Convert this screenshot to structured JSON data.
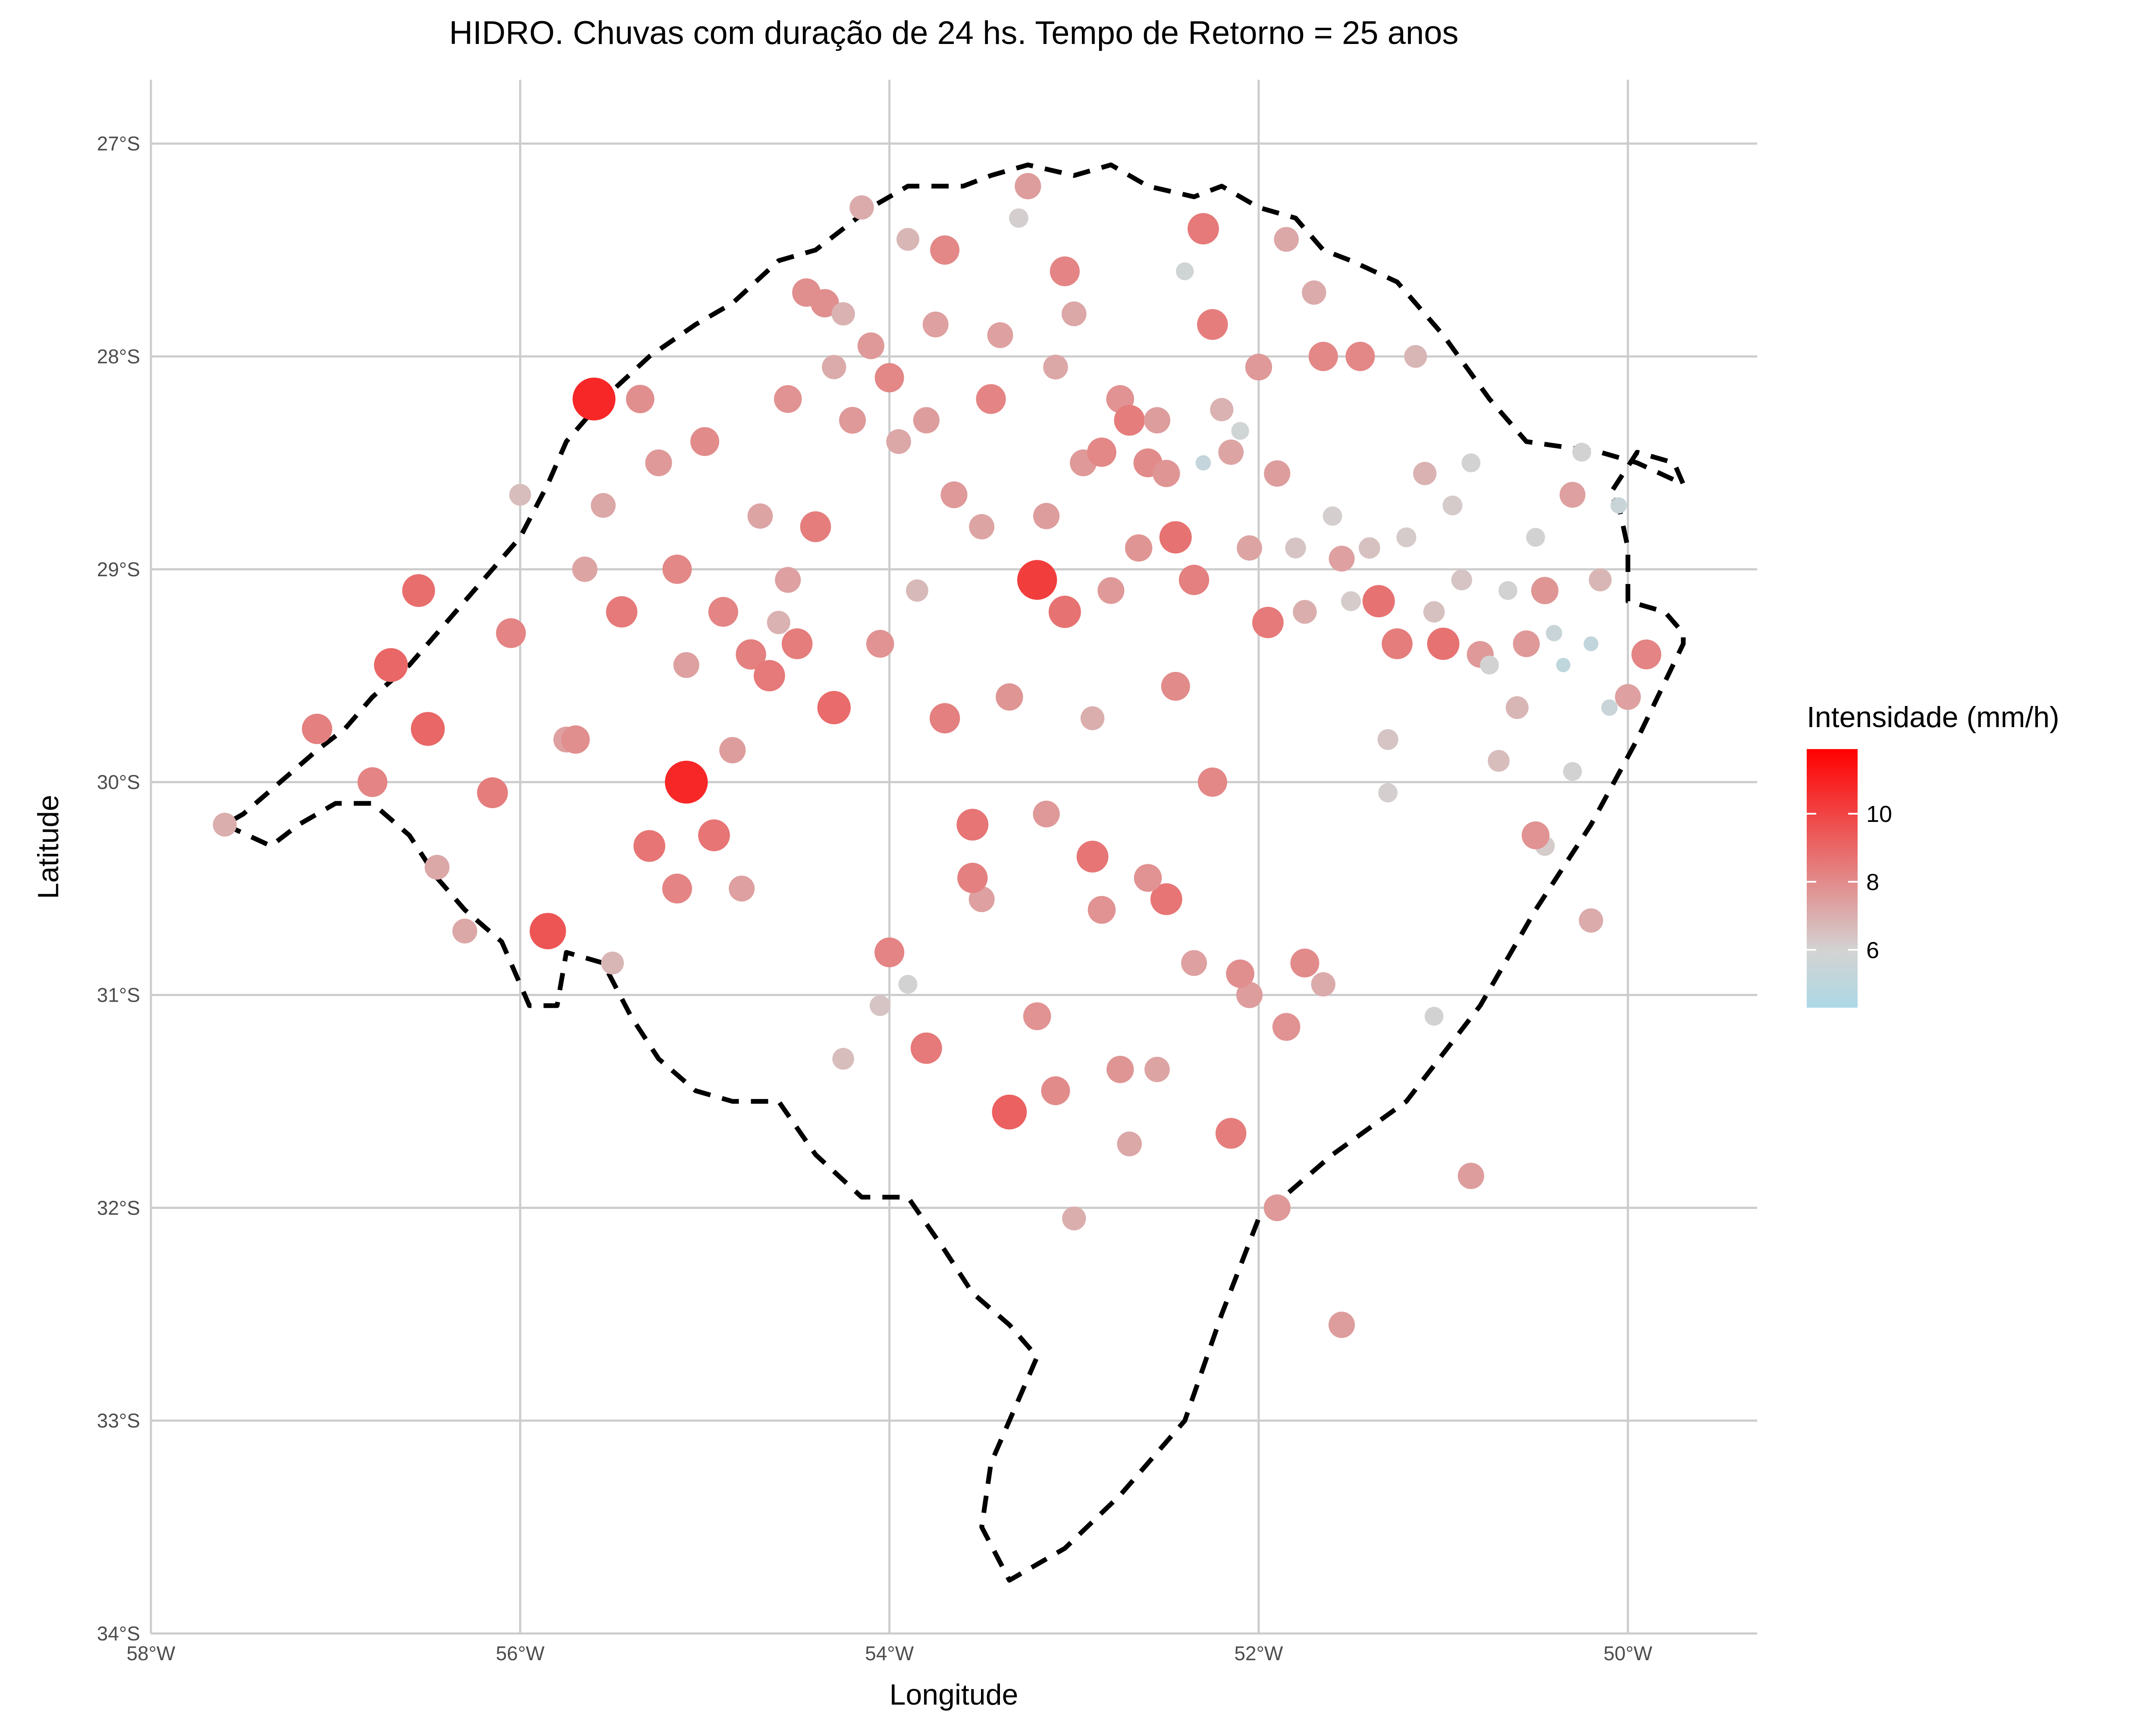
{
  "chart_data": {
    "type": "scatter",
    "title": "HIDRO. Chuvas com duração de 24 hs. Tempo de Retorno = 25 anos",
    "xlabel": "Longitude",
    "ylabel": "Latitude",
    "xlim": [
      -58,
      -49.3
    ],
    "ylim": [
      -34,
      -26.7
    ],
    "x_ticks": [
      -58,
      -56,
      -54,
      -52,
      -50
    ],
    "x_tick_labels": [
      "58°W",
      "56°W",
      "54°W",
      "52°W",
      "50°W"
    ],
    "y_ticks": [
      -27,
      -28,
      -29,
      -30,
      -31,
      -32,
      -33,
      -34
    ],
    "y_tick_labels": [
      "27°S",
      "28°S",
      "29°S",
      "30°S",
      "31°S",
      "32°S",
      "33°S",
      "34°S"
    ],
    "grid": true,
    "legend": {
      "title": "Intensidade (mm/h)",
      "placement": "right",
      "range": [
        4.3,
        11.9
      ],
      "ticks": [
        6,
        8,
        10
      ],
      "tick_labels": [
        "6",
        "8",
        "10"
      ],
      "colors": {
        "low": "#add8e6",
        "mid": "#d3d3d3",
        "high": "#ff0000"
      }
    },
    "border_line": {
      "style": "dashed",
      "color": "#000000",
      "lon": [
        -57.6,
        -57.35,
        -57.2,
        -57.0,
        -56.8,
        -56.6,
        -56.45,
        -56.3,
        -56.1,
        -55.95,
        -55.8,
        -55.75,
        -55.55,
        -55.4,
        -55.25,
        -55.05,
        -54.85,
        -54.6,
        -54.4,
        -54.15,
        -53.9,
        -53.7,
        -53.55,
        -53.35,
        -53.2,
        -53.3,
        -53.45,
        -53.5,
        -53.35,
        -53.05,
        -52.75,
        -52.4,
        -52.2,
        -52.0,
        -51.6,
        -51.2,
        -50.8,
        -50.5,
        -50.2,
        -49.95,
        -49.7,
        -49.7,
        -49.8,
        -50.0,
        -50.0,
        -50.05,
        -50.1,
        -49.95,
        -49.75,
        -49.7,
        -49.95,
        -50.15,
        -50.55,
        -50.75,
        -51.0,
        -51.25,
        -51.5,
        -51.65,
        -51.8,
        -52.0,
        -52.2,
        -52.35,
        -52.6,
        -52.8,
        -53.0,
        -53.25,
        -53.45,
        -53.6,
        -53.9,
        -54.1,
        -54.25,
        -54.4,
        -54.6,
        -54.85,
        -55.05,
        -55.3,
        -55.55,
        -55.75,
        -55.85,
        -56.0,
        -56.2,
        -56.4,
        -56.6,
        -56.8,
        -56.95,
        -57.1,
        -57.3,
        -57.5,
        -57.6
      ],
      "lat": [
        -30.2,
        -30.3,
        -30.2,
        -30.1,
        -30.1,
        -30.25,
        -30.45,
        -30.6,
        -30.75,
        -31.05,
        -31.05,
        -30.8,
        -30.85,
        -31.1,
        -31.3,
        -31.45,
        -31.5,
        -31.5,
        -31.75,
        -31.95,
        -31.95,
        -32.2,
        -32.4,
        -32.55,
        -32.7,
        -32.9,
        -33.2,
        -33.5,
        -33.75,
        -33.6,
        -33.35,
        -33.0,
        -32.5,
        -32.05,
        -31.75,
        -31.5,
        -31.05,
        -30.6,
        -30.2,
        -29.8,
        -29.35,
        -29.3,
        -29.2,
        -29.15,
        -28.9,
        -28.7,
        -28.65,
        -28.45,
        -28.5,
        -28.6,
        -28.5,
        -28.45,
        -28.4,
        -28.2,
        -27.9,
        -27.65,
        -27.55,
        -27.5,
        -27.35,
        -27.3,
        -27.2,
        -27.25,
        -27.2,
        -27.1,
        -27.15,
        -27.1,
        -27.15,
        -27.2,
        -27.2,
        -27.3,
        -27.4,
        -27.5,
        -27.55,
        -27.75,
        -27.85,
        -28.0,
        -28.2,
        -28.4,
        -28.6,
        -28.85,
        -29.05,
        -29.25,
        -29.45,
        -29.6,
        -29.75,
        -29.85,
        -30.0,
        -30.15,
        -30.2
      ]
    },
    "series": [
      {
        "lon": [
          -57.6,
          -57.1,
          -56.8,
          -56.7,
          -56.55,
          -56.5,
          -56.45,
          -56.15,
          -56.05,
          -56.0,
          -55.85,
          -55.75,
          -55.65,
          -55.6,
          -55.55,
          -55.5,
          -55.45,
          -55.35,
          -55.25,
          -55.15,
          -55.1,
          -55.15,
          -55.0,
          -54.95,
          -54.9,
          -54.85,
          -54.8,
          -54.75,
          -54.7,
          -54.65,
          -54.6,
          -54.55,
          -54.55,
          -54.5,
          -54.45,
          -54.4,
          -54.35,
          -54.3,
          -54.3,
          -54.25,
          -54.15,
          -54.2,
          -54.1,
          -54.05,
          -54.0,
          -53.95,
          -53.9,
          -53.85,
          -53.8,
          -53.75,
          -53.7,
          -53.7,
          -53.65,
          -53.55,
          -53.5,
          -53.45,
          -53.4,
          -53.35,
          -53.3,
          -53.25,
          -53.2,
          -53.15,
          -53.15,
          -53.1,
          -53.05,
          -53.05,
          -53.0,
          -52.95,
          -52.9,
          -52.85,
          -52.8,
          -52.75,
          -52.7,
          -52.65,
          -52.6,
          -52.55,
          -52.5,
          -52.45,
          -52.4,
          -52.35,
          -52.3,
          -52.3,
          -52.25,
          -52.2,
          -52.15,
          -52.1,
          -52.05,
          -52.0,
          -51.95,
          -51.9,
          -51.85,
          -51.8,
          -51.75,
          -51.7,
          -51.65,
          -51.6,
          -51.55,
          -51.5,
          -51.45,
          -51.4,
          -51.35,
          -51.3,
          -51.25,
          -51.2,
          -51.15,
          -51.1,
          -51.05,
          -51.0,
          -50.95,
          -50.9,
          -50.85,
          -50.8,
          -50.75,
          -50.7,
          -50.65,
          -50.6,
          -50.55,
          -50.5,
          -50.45,
          -50.4,
          -50.35,
          -50.3,
          -50.25,
          -50.2,
          -50.15,
          -50.1,
          -50.05,
          -50.0,
          -49.9,
          -55.1,
          -53.2,
          -53.35,
          -52.55,
          -52.05,
          -51.75,
          -53.1,
          -52.15,
          -53.5,
          -52.85,
          -54.25,
          -53.8,
          -54.0,
          -52.5,
          -52.9,
          -51.65,
          -50.45,
          -50.2,
          -51.3,
          -52.6,
          -53.0,
          -51.9,
          -50.5,
          -51.55,
          -51.05,
          -52.35,
          -52.1,
          -54.05,
          -55.3,
          -56.3,
          -55.7,
          -52.75,
          -53.55,
          -50.85,
          -52.25,
          -51.85,
          -50.3,
          -52.45,
          -53.9,
          -52.7
        ],
        "lat": [
          -30.2,
          -29.75,
          -30.0,
          -29.45,
          -29.1,
          -29.75,
          -30.4,
          -30.05,
          -29.3,
          -28.65,
          -30.7,
          -29.8,
          -29.0,
          -28.2,
          -28.7,
          -30.85,
          -29.2,
          -28.2,
          -28.5,
          -29.0,
          -29.45,
          -30.5,
          -28.4,
          -30.25,
          -29.2,
          -29.85,
          -30.5,
          -29.4,
          -28.75,
          -29.5,
          -29.25,
          -28.2,
          -29.05,
          -29.35,
          -27.7,
          -28.8,
          -27.75,
          -28.05,
          -29.65,
          -27.8,
          -27.3,
          -28.3,
          -27.95,
          -29.35,
          -28.1,
          -28.4,
          -27.45,
          -29.1,
          -28.3,
          -27.85,
          -27.5,
          -29.7,
          -28.65,
          -30.2,
          -28.8,
          -28.2,
          -27.9,
          -29.6,
          -27.35,
          -27.2,
          -29.05,
          -28.75,
          -30.15,
          -28.05,
          -27.6,
          -29.2,
          -27.8,
          -28.5,
          -29.7,
          -28.45,
          -29.1,
          -28.2,
          -28.3,
          -28.9,
          -28.5,
          -28.3,
          -28.55,
          -28.85,
          -27.6,
          -29.05,
          -28.5,
          -27.4,
          -27.85,
          -28.25,
          -28.45,
          -28.35,
          -28.9,
          -28.05,
          -29.25,
          -28.55,
          -27.45,
          -28.9,
          -29.2,
          -27.7,
          -28.0,
          -28.75,
          -28.95,
          -29.15,
          -28.0,
          -28.9,
          -29.15,
          -29.8,
          -29.35,
          -28.85,
          -28.0,
          -28.55,
          -29.2,
          -29.35,
          -28.7,
          -29.05,
          -28.5,
          -29.4,
          -29.45,
          -29.9,
          -29.1,
          -29.65,
          -29.35,
          -28.85,
          -29.1,
          -29.3,
          -29.45,
          -28.65,
          -28.45,
          -29.35,
          -29.05,
          -29.65,
          -28.7,
          -29.6,
          -29.4,
          -30.0,
          -31.1,
          -31.55,
          -31.35,
          -31.0,
          -30.85,
          -31.45,
          -31.65,
          -30.55,
          -30.6,
          -31.3,
          -31.25,
          -30.8,
          -30.55,
          -30.35,
          -30.95,
          -30.3,
          -30.65,
          -30.05,
          -30.45,
          -32.05,
          -32.0,
          -30.25,
          -32.55,
          -31.1,
          -30.85,
          -30.9,
          -31.05,
          -30.3,
          -30.7,
          -29.8,
          -31.35,
          -30.45,
          -31.85,
          -30.0,
          -31.15,
          -29.95,
          -29.55,
          -30.95,
          -31.7,
          -31.75
        ],
        "intensity": [
          7.0,
          8.3,
          8.2,
          9.0,
          8.8,
          9.0,
          7.2,
          8.4,
          8.2,
          6.6,
          9.5,
          7.4,
          7.3,
          10.8,
          7.2,
          6.8,
          8.5,
          7.9,
          7.6,
          8.1,
          7.4,
          8.2,
          8.0,
          8.6,
          8.2,
          7.5,
          7.4,
          8.3,
          7.3,
          8.5,
          6.9,
          7.8,
          7.4,
          8.4,
          7.9,
          8.4,
          7.9,
          7.1,
          8.9,
          6.9,
          7.1,
          7.6,
          7.6,
          7.8,
          8.1,
          7.2,
          6.8,
          6.7,
          7.5,
          7.4,
          8.1,
          8.3,
          7.6,
          8.6,
          7.3,
          8.2,
          7.4,
          7.7,
          6.1,
          7.5,
          10.2,
          7.5,
          7.6,
          7.2,
          8.2,
          8.7,
          7.2,
          7.6,
          7.0,
          8.1,
          7.6,
          7.8,
          8.4,
          7.7,
          8.0,
          7.5,
          7.7,
          8.7,
          5.8,
          8.3,
          5.3,
          8.5,
          8.4,
          6.9,
          7.3,
          5.8,
          7.3,
          7.6,
          8.5,
          7.5,
          7.2,
          6.4,
          7.0,
          7.1,
          8.1,
          6.1,
          7.4,
          6.2,
          8.1,
          6.5,
          8.7,
          6.4,
          8.4,
          6.2,
          6.8,
          6.9,
          6.5,
          8.7,
          6.2,
          6.4,
          6.0,
          7.6,
          6.0,
          6.6,
          6.0,
          6.8,
          7.6,
          6.0,
          7.7,
          5.5,
          5.1,
          7.4,
          6.0,
          5.2,
          6.8,
          5.5,
          5.5,
          7.4,
          8.2,
          10.8,
          7.8,
          9.2,
          7.3,
          7.5,
          8.0,
          8.0,
          8.4,
          7.4,
          7.8,
          6.6,
          8.5,
          8.2,
          8.6,
          8.6,
          7.1,
          6.2,
          7.1,
          6.1,
          7.8,
          7.0,
          7.6,
          7.8,
          7.5,
          6.0,
          7.4,
          7.9,
          6.4,
          8.6,
          7.2,
          7.9,
          7.7,
          8.3,
          7.5,
          8.1,
          7.8,
          6.0,
          8.0,
          6.0,
          7.2,
          6.5,
          5.1,
          7.2,
          7.4,
          7.6
        ],
        "color_scale": "intensity"
      }
    ]
  }
}
